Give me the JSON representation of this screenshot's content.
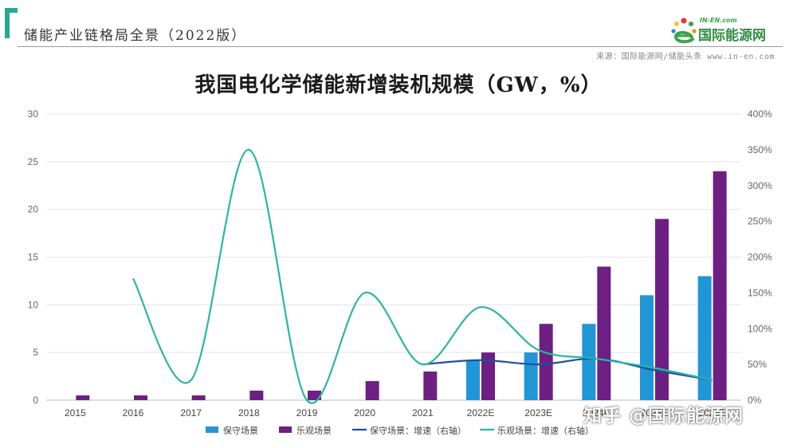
{
  "header": {
    "title": "储能产业链格局全景（2022版）",
    "source": "来源：国际能源网/储能头条 www.in-en.com"
  },
  "logo": {
    "top_text": "IN-EN.com",
    "name": "国际能源网"
  },
  "watermark": "知乎 @国际能源网",
  "chart_data": {
    "type": "bar",
    "title": "我国电化学储能新增装机规模（GW，%）",
    "categories": [
      "2015",
      "2016",
      "2017",
      "2018",
      "2019",
      "2020",
      "2021",
      "2022E",
      "2023E",
      "2024E",
      "2025E",
      "2026E"
    ],
    "y_left": {
      "min": 0,
      "max": 30,
      "ticks": [
        "0",
        "5",
        "10",
        "15",
        "20",
        "25",
        "30"
      ]
    },
    "y_right": {
      "min": 0,
      "max": 400,
      "ticks": [
        "0%",
        "50%",
        "100%",
        "150%",
        "200%",
        "250%",
        "300%",
        "350%",
        "400%"
      ]
    },
    "grid": true,
    "legend_position": "bottom",
    "series": [
      {
        "name": "保守场景",
        "type": "bar",
        "axis": "left",
        "color": "#1f96d6",
        "values": [
          null,
          null,
          null,
          null,
          null,
          null,
          null,
          4.2,
          5,
          8,
          11,
          13
        ]
      },
      {
        "name": "乐观场景",
        "type": "bar",
        "axis": "left",
        "color": "#6e1f83",
        "values": [
          0.5,
          0.5,
          0.5,
          1,
          1,
          2,
          3,
          5,
          8,
          14,
          19,
          24
        ]
      },
      {
        "name": "保守场景：增速（右轴）",
        "type": "line",
        "axis": "right",
        "color": "#1d4f9c",
        "values": [
          null,
          null,
          null,
          null,
          null,
          null,
          50,
          56,
          50,
          58,
          42,
          28
        ]
      },
      {
        "name": "乐观场景：增速（右轴）",
        "type": "line",
        "axis": "right",
        "color": "#2bb5a6",
        "values": [
          null,
          170,
          28,
          350,
          0,
          150,
          50,
          130,
          70,
          58,
          45,
          28
        ]
      }
    ]
  }
}
